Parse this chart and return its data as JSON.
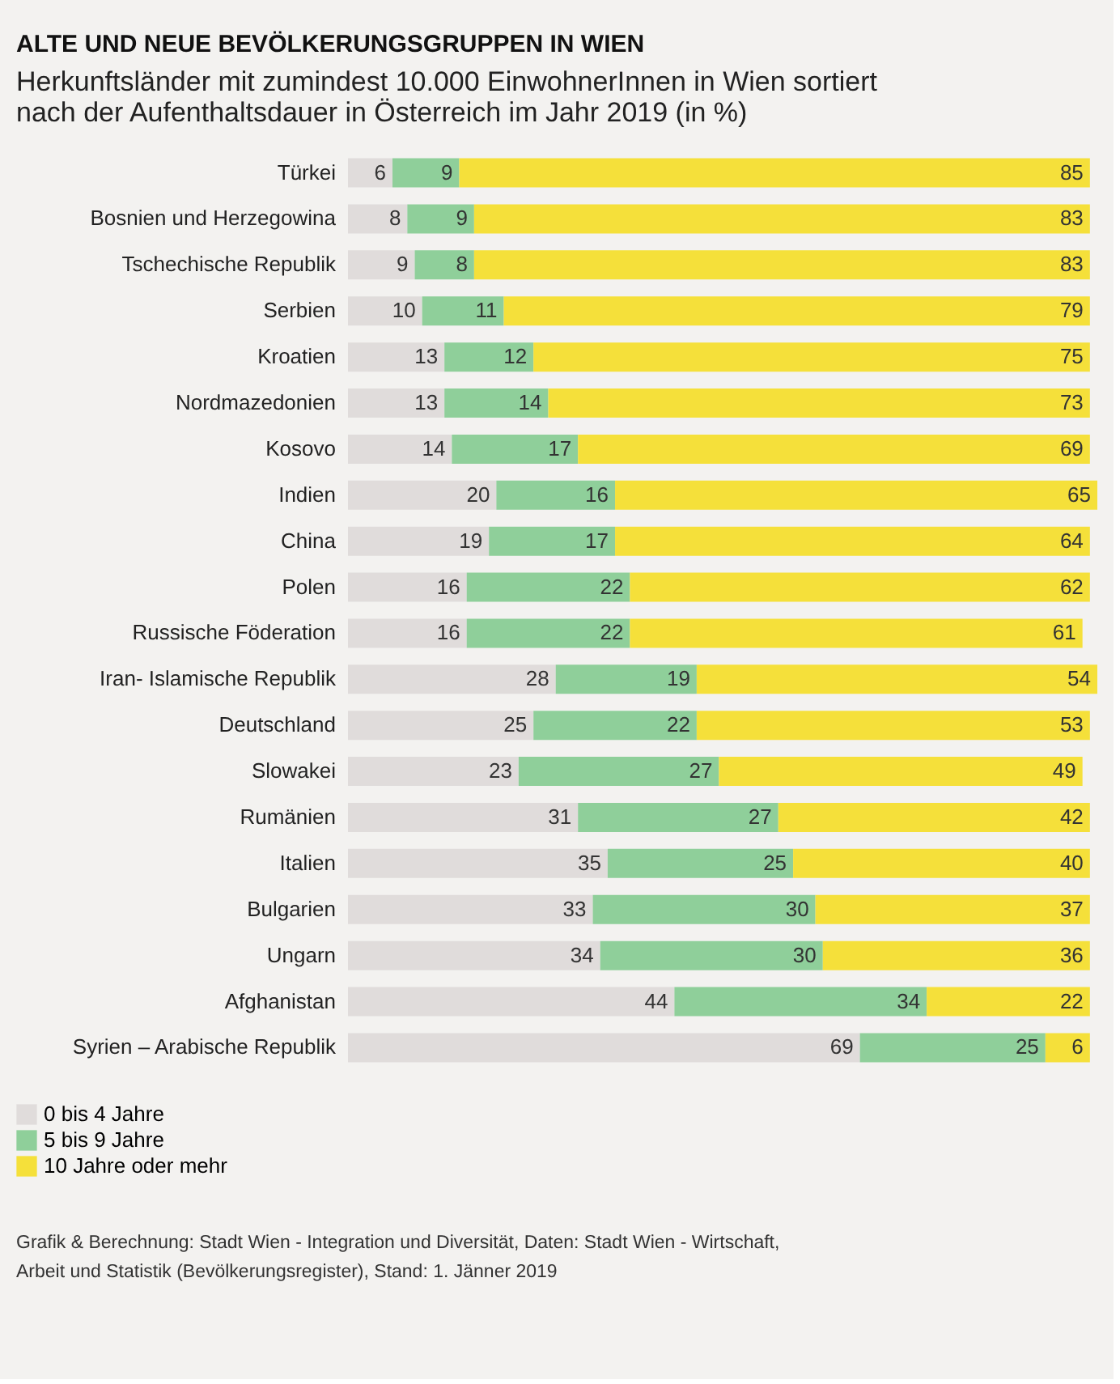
{
  "chart_data": {
    "type": "bar",
    "orientation": "horizontal",
    "stacked": true,
    "data_labels": true,
    "title": "ALTE UND NEUE BEVÖLKERUNGSGRUPPEN IN WIEN",
    "subtitle": "Herkunftsländer mit zumindest 10.000 EinwohnerInnen in Wien sortiert nach der Aufenthaltsdauer in Österreich im Jahr 2019 (in %)",
    "categories": [
      "Türkei",
      "Bosnien und Herzegowina",
      "Tschechische Republik",
      "Serbien",
      "Kroatien",
      "Nordmazedonien",
      "Kosovo",
      "Indien",
      "China",
      "Polen",
      "Russische Föderation",
      "Iran- Islamische Republik",
      "Deutschland",
      "Slowakei",
      "Rumänien",
      "Italien",
      "Bulgarien",
      "Ungarn",
      "Afghanistan",
      "Syrien – Arabische Republik"
    ],
    "series": [
      {
        "name": "0 bis 4 Jahre",
        "color": "#e0dcdb",
        "values": [
          6,
          8,
          9,
          10,
          13,
          13,
          14,
          20,
          19,
          16,
          16,
          28,
          25,
          23,
          31,
          35,
          33,
          34,
          44,
          69
        ]
      },
      {
        "name": "5 bis 9 Jahre",
        "color": "#8fcf9a",
        "values": [
          9,
          9,
          8,
          11,
          12,
          14,
          17,
          16,
          17,
          22,
          22,
          19,
          22,
          27,
          27,
          25,
          30,
          30,
          34,
          25
        ]
      },
      {
        "name": "10 Jahre oder mehr",
        "color": "#f5e03a",
        "values": [
          85,
          83,
          83,
          79,
          75,
          73,
          69,
          65,
          64,
          62,
          61,
          54,
          53,
          49,
          42,
          40,
          37,
          36,
          22,
          6
        ]
      }
    ],
    "legend": "bottom left",
    "tick_labels": "y",
    "annotations": [
      "Grafik & Berechnung: Stadt Wien - Integration und Diversität, Daten: Stadt Wien - Wirtschaft, Arbeit und Statistik (Bevölkerungsregister), Stand: 1. Jänner 2019"
    ]
  }
}
